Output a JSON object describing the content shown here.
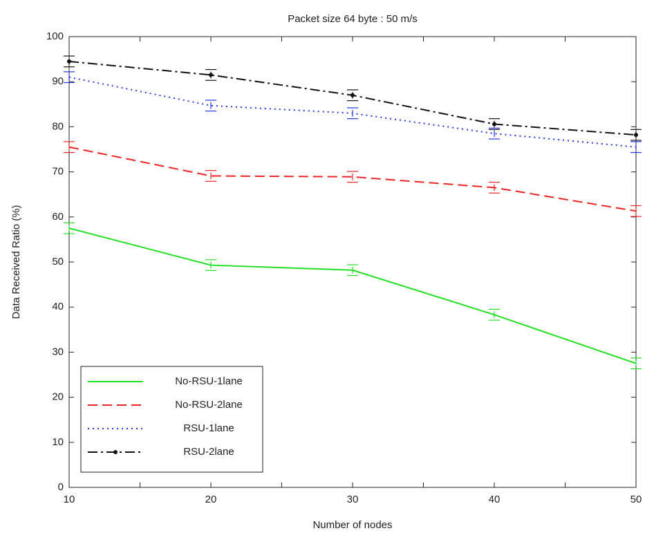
{
  "chart_data": {
    "type": "line",
    "title": "Packet size 64 byte : 50 m/s",
    "xlabel": "Number of nodes",
    "ylabel": "Data Received Ratio (%)",
    "x": [
      10,
      20,
      30,
      40,
      50
    ],
    "xlim": [
      10,
      50
    ],
    "xticks": [
      10,
      20,
      30,
      40,
      50
    ],
    "xminorticks": [
      15,
      25,
      35,
      45
    ],
    "ylim": [
      0,
      100
    ],
    "yticks": [
      0,
      10,
      20,
      30,
      40,
      50,
      60,
      70,
      80,
      90,
      100
    ],
    "grid": false,
    "legend": "lower left",
    "series": [
      {
        "name": "No-RSU-1lane",
        "color": "#22e022",
        "linestyle": "solid",
        "values": [
          57.5,
          49.3,
          48.2,
          38.3,
          27.5
        ],
        "errors": [
          1.2,
          1.2,
          1.2,
          1.2,
          1.2
        ]
      },
      {
        "name": "No-RSU-2lane",
        "color": "#ee2222",
        "linestyle": "dashed",
        "values": [
          75.5,
          69.1,
          68.9,
          66.5,
          61.3
        ],
        "errors": [
          1.2,
          1.2,
          1.2,
          1.2,
          1.2
        ]
      },
      {
        "name": "RSU-1lane",
        "color": "#2233ee",
        "linestyle": "dotted",
        "values": [
          91,
          84.7,
          83,
          78.5,
          75.5
        ],
        "errors": [
          1.2,
          1.2,
          1.2,
          1.2,
          1.2
        ]
      },
      {
        "name": "RSU-2lane",
        "color": "#111111",
        "linestyle": "dashdot",
        "marker": "dot",
        "values": [
          94.5,
          91.5,
          87,
          80.6,
          78.2
        ],
        "errors": [
          1.2,
          1.2,
          1.2,
          1.2,
          1.2
        ]
      }
    ]
  }
}
